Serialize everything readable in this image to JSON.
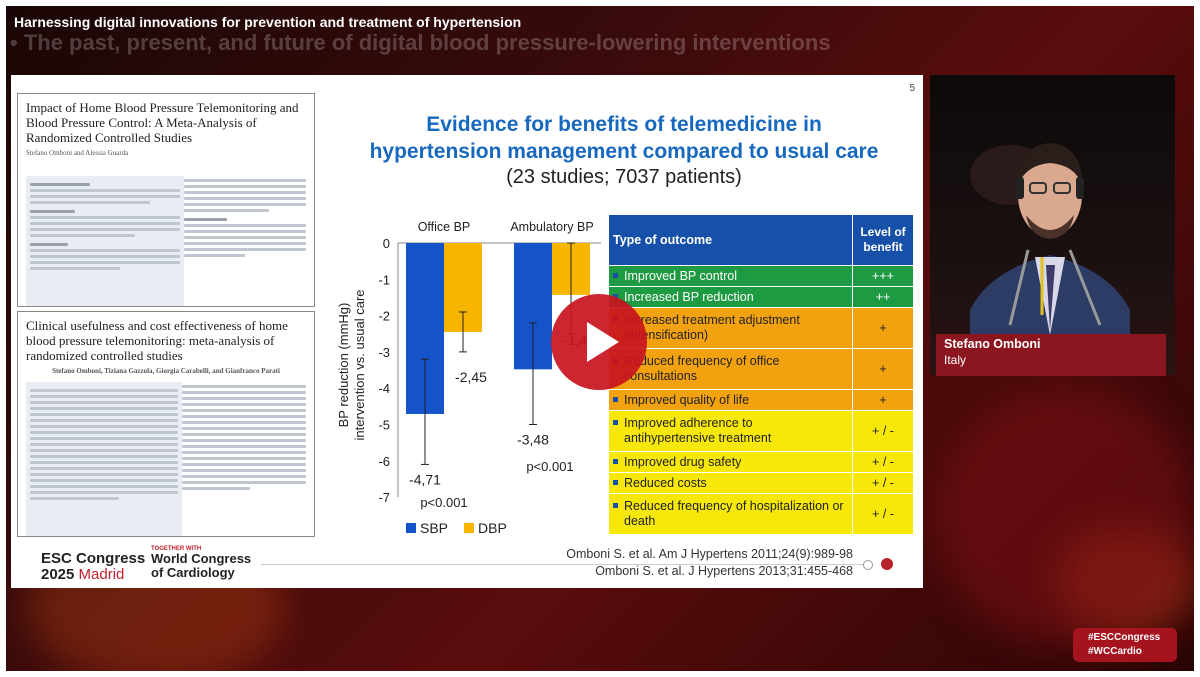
{
  "video": {
    "title": "Harnessing digital innovations for prevention and treatment of hypertension",
    "subtitle_overlay": "• The past, present, and future of digital blood pressure-lowering interventions"
  },
  "slide": {
    "number": "5",
    "title_line1": "Evidence for benefits of telemedicine in",
    "title_line2": "hypertension management compared to usual care",
    "subtitle": "(23 studies; 7037 patients)",
    "paper1": {
      "title": "Impact of Home Blood Pressure Telemonitoring and Blood Pressure Control: A Meta-Analysis of Randomized Controlled Studies",
      "authors": "Stefano Omboni and Alessia Guarda"
    },
    "paper2": {
      "title": "Clinical usefulness and cost effectiveness of home blood pressure telemonitoring: meta-analysis of randomized controlled studies",
      "authors": "Stefano Omboni, Tiziana Gazzola, Giorgia Carabelli, and Gianfranco Parati"
    },
    "references": [
      "Omboni S. et al. Am J Hypertens 2011;24(9):989-98",
      "Omboni S. et al. J Hypertens 2013;31:455-468"
    ],
    "logo_esc_line1": "ESC Congress",
    "logo_esc_year": "2025",
    "logo_esc_city": "Madrid",
    "logo_wcc_together": "TOGETHER WITH",
    "logo_wcc_line1": "World Congress",
    "logo_wcc_line2": "of Cardiology"
  },
  "chart_data": {
    "type": "bar",
    "groups": [
      "Office BP",
      "Ambulatory BP"
    ],
    "series": [
      {
        "name": "SBP",
        "color": "#1553c8",
        "values": [
          -4.71,
          -3.48
        ],
        "labels": [
          "-4,71",
          "-3,48"
        ],
        "err_low": [
          -6.1,
          -5.0
        ],
        "err_high": [
          -3.2,
          -2.2
        ]
      },
      {
        "name": "DBP",
        "color": "#f7b500",
        "values": [
          -2.45,
          -1.43
        ],
        "labels": [
          "-2,45",
          "-1,43"
        ],
        "err_low": [
          -3.0,
          -2.5
        ],
        "err_high": [
          -1.9,
          0.0
        ]
      }
    ],
    "pvalues": [
      "p<0.001",
      "p<0.001"
    ],
    "ylabel_line1": "BP reduction (mmHg)",
    "ylabel_line2": "intervention vs. usual care",
    "yticks": [
      "0",
      "-1",
      "-2",
      "-3",
      "-4",
      "-5",
      "-6",
      "-7"
    ],
    "ylim": [
      -7,
      0
    ]
  },
  "outcomes_table": {
    "header_outcome": "Type of outcome",
    "header_level": "Level of benefit",
    "rows": [
      {
        "outcome": "Improved BP control",
        "level": "+++",
        "color": "#1e9a43"
      },
      {
        "outcome": "Increased BP reduction",
        "level": "++",
        "color": "#1e9a43"
      },
      {
        "outcome": "Increased treatment adjustment (intensification)",
        "level": "+",
        "color": "#f2a20f"
      },
      {
        "outcome": "Reduced frequency of office consultations",
        "level": "+",
        "color": "#f2a20f"
      },
      {
        "outcome": "Improved quality of life",
        "level": "+",
        "color": "#f2a20f"
      },
      {
        "outcome": "Improved adherence to antihypertensive treatment",
        "level": "+ / -",
        "color": "#f7e80a"
      },
      {
        "outcome": "Improved drug safety",
        "level": "+ / -",
        "color": "#f7e80a"
      },
      {
        "outcome": "Reduced costs",
        "level": "+ / -",
        "color": "#f7e80a"
      },
      {
        "outcome": "Reduced frequency of hospitalization or death",
        "level": "+ / -",
        "color": "#f7e80a"
      }
    ]
  },
  "speaker": {
    "name": "Stefano Omboni",
    "country": "Italy"
  },
  "hashtags": [
    "#ESCCongress",
    "#WCCardio"
  ]
}
